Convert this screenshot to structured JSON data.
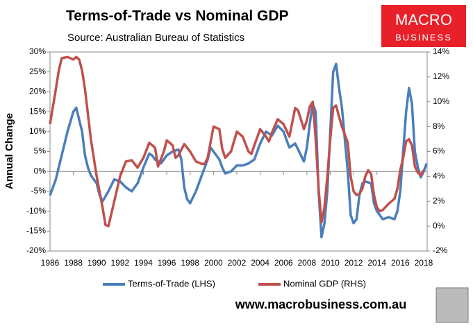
{
  "chart_data": {
    "type": "line",
    "title": "Terms-of-Trade vs Nominal GDP",
    "subtitle": "Source: Australian Bureau of Statistics",
    "y_label": "Annual Change",
    "logo": [
      "MACRO",
      "BUSINESS"
    ],
    "footer": "www.macrobusiness.com.au",
    "xlim": [
      1986,
      2018.3
    ],
    "xticks": [
      1986,
      1988,
      1990,
      1992,
      1994,
      1996,
      1998,
      2000,
      2002,
      2004,
      2006,
      2008,
      2010,
      2012,
      2014,
      2016,
      2018
    ],
    "ylim": [
      -20,
      30
    ],
    "yticks": [
      {
        "value": -20,
        "label": "-20%"
      },
      {
        "value": -15,
        "label": "-15%"
      },
      {
        "value": -10,
        "label": "-10%"
      },
      {
        "value": -5,
        "label": "-5%"
      },
      {
        "value": 0,
        "label": "0%"
      },
      {
        "value": 5,
        "label": "5%"
      },
      {
        "value": 10,
        "label": "10%"
      },
      {
        "value": 15,
        "label": "15%"
      },
      {
        "value": 20,
        "label": "20%"
      },
      {
        "value": 25,
        "label": "25%"
      },
      {
        "value": 30,
        "label": "30%"
      }
    ],
    "y2lim": [
      -2,
      14
    ],
    "y2ticks": [
      {
        "value": -2,
        "label": "-2%"
      },
      {
        "value": 0,
        "label": "0%"
      },
      {
        "value": 2,
        "label": "2%"
      },
      {
        "value": 4,
        "label": "4%"
      },
      {
        "value": 6,
        "label": "6%"
      },
      {
        "value": 8,
        "label": "8%"
      },
      {
        "value": 10,
        "label": "10%"
      },
      {
        "value": 12,
        "label": "12%"
      },
      {
        "value": 14,
        "label": "14%"
      }
    ],
    "series": [
      {
        "name": "Terms-of-Trade (LHS)",
        "color": "#4a7ebb",
        "axis": "y",
        "x": [
          1986,
          1986.5,
          1987,
          1987.5,
          1988,
          1988.25,
          1988.75,
          1989,
          1989.25,
          1989.5,
          1990,
          1990.25,
          1990.5,
          1991,
          1991.5,
          1992,
          1992.5,
          1993,
          1993.5,
          1994,
          1994.5,
          1994.75,
          1995,
          1995.5,
          1996,
          1996.5,
          1997,
          1997.25,
          1997.5,
          1997.75,
          1998,
          1998.5,
          1999,
          1999.5,
          1999.75,
          2000,
          2000.5,
          2000.75,
          2001,
          2001.5,
          2002,
          2002.5,
          2003,
          2003.5,
          2004,
          2004.5,
          2005,
          2005.5,
          2006,
          2006.5,
          2007,
          2007.5,
          2007.75,
          2008,
          2008.25,
          2008.5,
          2008.75,
          2009,
          2009.25,
          2009.5,
          2009.75,
          2010,
          2010.25,
          2010.5,
          2010.75,
          2011,
          2011.5,
          2011.75,
          2012,
          2012.25,
          2012.5,
          2012.75,
          2013,
          2013.5,
          2013.75,
          2014,
          2014.5,
          2015,
          2015.5,
          2015.75,
          2016,
          2016.25,
          2016.5,
          2016.75,
          2017,
          2017.25,
          2017.5,
          2017.75,
          2018,
          2018.25
        ],
        "values": [
          -6,
          -2,
          4,
          10,
          15,
          16,
          10,
          4,
          1,
          -1,
          -3,
          -6,
          -7.5,
          -5,
          -2,
          -2.5,
          -4,
          -5,
          -3,
          1,
          4.5,
          4,
          3,
          2,
          4,
          5,
          5.5,
          3,
          -4,
          -7,
          -8,
          -5,
          -1,
          3,
          6,
          5,
          3,
          1,
          -0.5,
          0,
          1.5,
          1.5,
          2,
          3,
          7,
          10,
          9,
          11.5,
          10,
          6,
          7,
          4,
          2.5,
          6,
          12,
          17,
          15,
          -5,
          -16.5,
          -13,
          -5,
          10,
          25,
          27,
          21,
          16,
          0,
          -11,
          -13,
          -12,
          -6,
          -3,
          -2.5,
          -3,
          -8,
          -10,
          -12,
          -11.5,
          -12,
          -10,
          -5,
          5,
          15,
          21,
          17,
          5,
          1,
          -1.5,
          0,
          2
        ]
      },
      {
        "name": "Nominal GDP (RHS)",
        "color": "#c0504d",
        "axis": "y2",
        "x": [
          1986,
          1986.5,
          1986.75,
          1987,
          1987.5,
          1988,
          1988.25,
          1988.5,
          1988.75,
          1989,
          1989.5,
          1990,
          1990.5,
          1990.75,
          1991,
          1991.5,
          1992,
          1992.5,
          1993,
          1993.5,
          1994,
          1994.5,
          1995,
          1995.25,
          1995.75,
          1996,
          1996.5,
          1996.75,
          1997,
          1997.5,
          1998,
          1998.5,
          1999,
          1999.25,
          1999.5,
          2000,
          2000.5,
          2000.75,
          2001,
          2001.5,
          2002,
          2002.5,
          2003,
          2003.25,
          2003.5,
          2004,
          2004.5,
          2004.75,
          2005,
          2005.5,
          2006,
          2006.5,
          2007,
          2007.25,
          2007.75,
          2008,
          2008.25,
          2008.5,
          2008.75,
          2009,
          2009.25,
          2009.5,
          2009.75,
          2010,
          2010.25,
          2010.5,
          2010.75,
          2011,
          2011.5,
          2011.75,
          2012,
          2012.25,
          2012.5,
          2012.75,
          2013,
          2013.25,
          2013.5,
          2013.75,
          2014,
          2014.25,
          2014.5,
          2015,
          2015.5,
          2015.75,
          2016,
          2016.25,
          2016.5,
          2016.75,
          2017,
          2017.25,
          2017.5,
          2017.75,
          2018
        ],
        "values": [
          8.2,
          11,
          12.5,
          13.5,
          13.6,
          13.4,
          13.6,
          13.4,
          12.5,
          11,
          7,
          4,
          1.5,
          0.1,
          0,
          2,
          4,
          5.2,
          5.3,
          4.7,
          5.5,
          6.7,
          6.3,
          4.8,
          6,
          6.9,
          6.5,
          5.5,
          5.7,
          6.6,
          6,
          5.2,
          5,
          5,
          5.5,
          8,
          7.8,
          6.2,
          5.5,
          6,
          7.6,
          7.2,
          6,
          5.8,
          6.5,
          7.8,
          7.2,
          6.8,
          7.5,
          8.6,
          8.2,
          7.2,
          9.5,
          9.3,
          7.8,
          8.5,
          9.6,
          10,
          7,
          3,
          0.3,
          1.5,
          4,
          7,
          9.5,
          9.7,
          8.8,
          8,
          6.7,
          4,
          2.8,
          2.5,
          2.6,
          3,
          4,
          4.5,
          4.2,
          2.5,
          1.5,
          1.2,
          1.3,
          1.8,
          2.2,
          3,
          4.5,
          5.5,
          6.8,
          7,
          6.5,
          4.8,
          4.3,
          4.1,
          4.5
        ]
      }
    ]
  }
}
